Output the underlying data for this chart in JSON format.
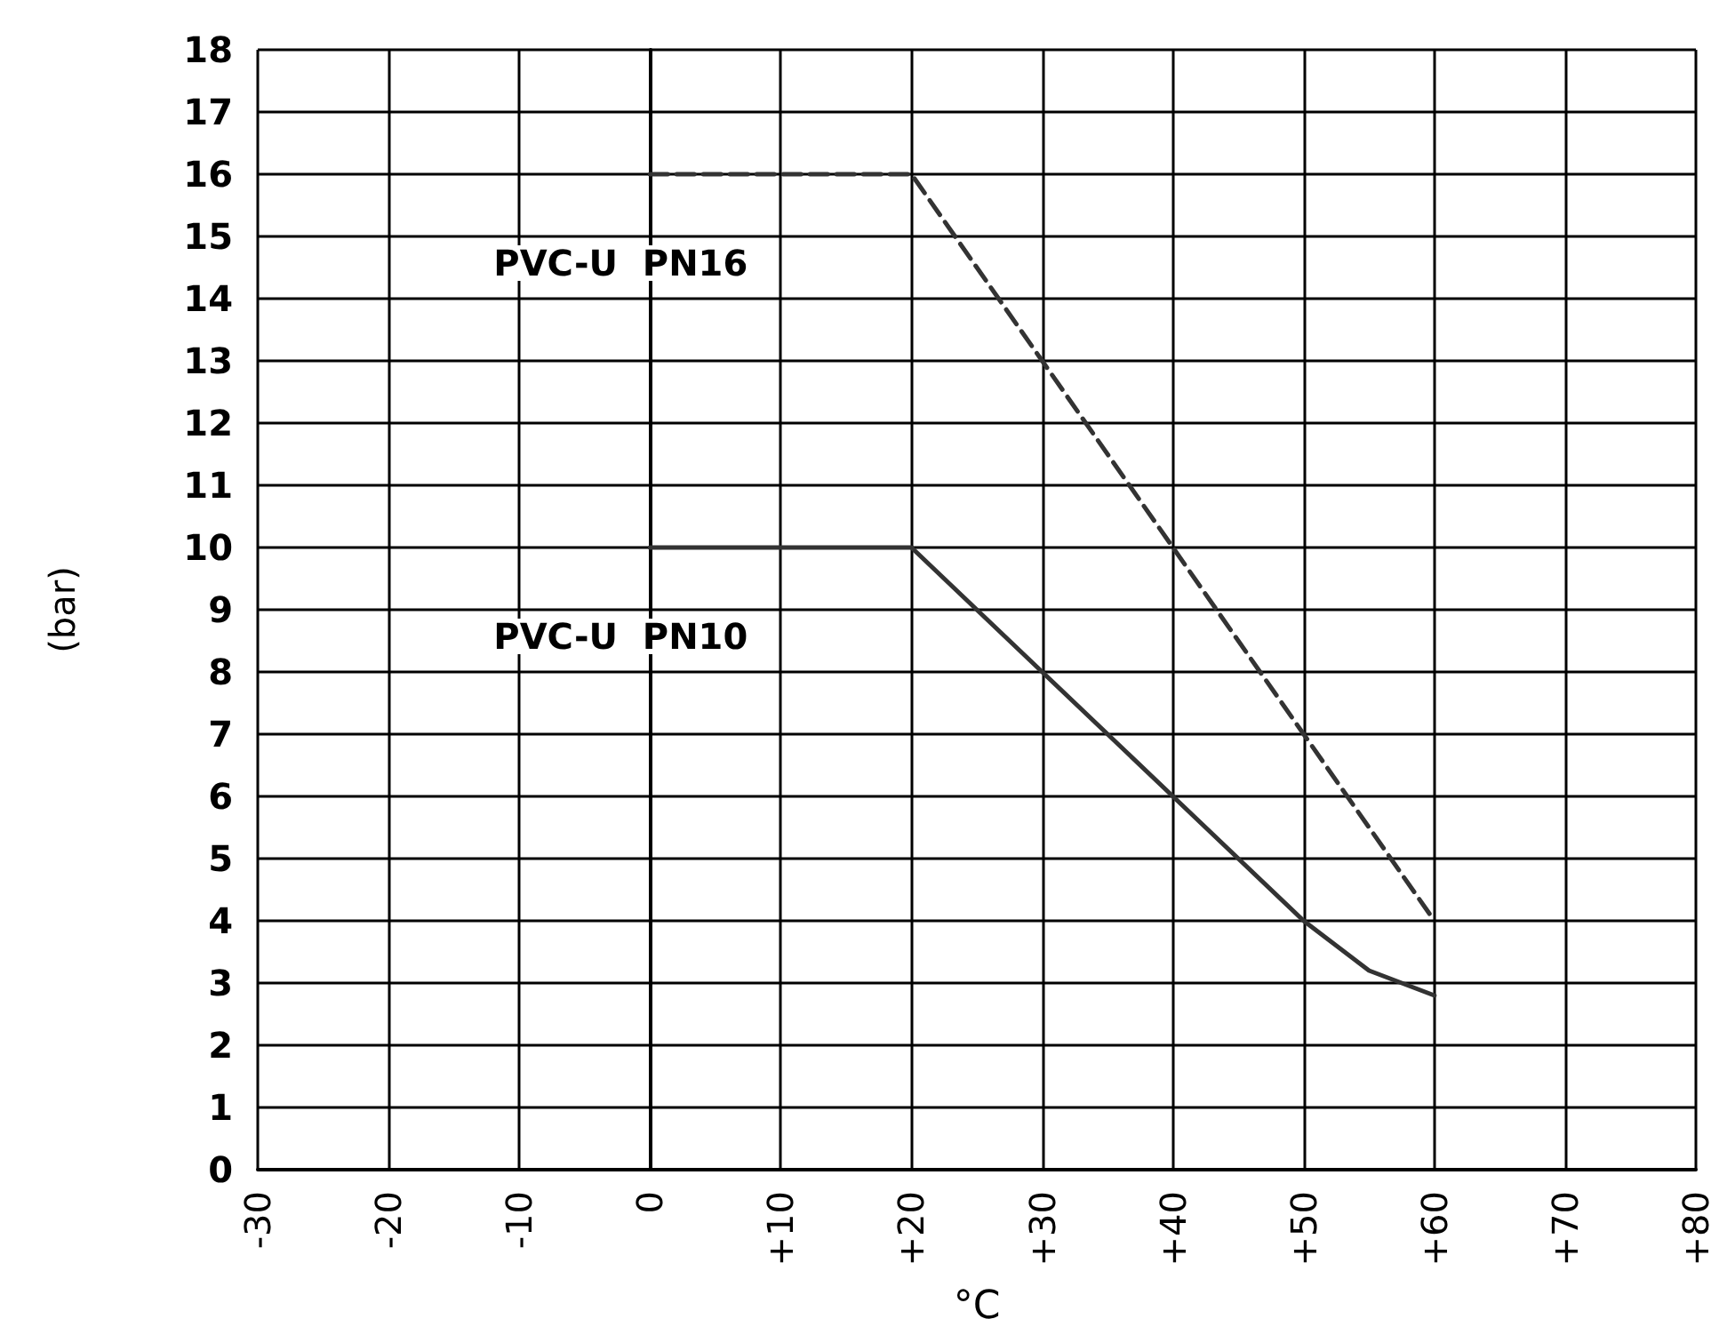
{
  "chart_data": {
    "type": "line",
    "xlabel": "°C",
    "ylabel": "(bar)",
    "xlim": [
      -30,
      80
    ],
    "xticks": [
      -30,
      -20,
      -10,
      0,
      {
        "value": 10,
        "label": "+10"
      },
      {
        "value": 20,
        "label": "+20"
      },
      {
        "value": 30,
        "label": "+30"
      },
      {
        "value": 40,
        "label": "+40"
      },
      {
        "value": 50,
        "label": "+50"
      },
      {
        "value": 60,
        "label": "+60"
      },
      {
        "value": 70,
        "label": "+70"
      },
      {
        "value": 80,
        "label": "+80"
      }
    ],
    "ylim": [
      0,
      18
    ],
    "yticks": [
      0,
      1,
      2,
      3,
      4,
      5,
      6,
      7,
      8,
      9,
      10,
      11,
      12,
      13,
      14,
      15,
      16,
      17,
      18
    ],
    "grid": true,
    "legend": false,
    "marker": "none",
    "series": [
      {
        "name": "PVC-U  PN16",
        "color": "#333333",
        "line_style": "dashed",
        "x": [
          0,
          20,
          30,
          40,
          50,
          60
        ],
        "values": [
          16,
          16,
          13,
          10,
          7,
          4
        ]
      },
      {
        "name": "PVC-U  PN10",
        "color": "#333333",
        "line_style": "solid",
        "x": [
          0,
          20,
          30,
          40,
          50,
          55,
          60
        ],
        "values": [
          10,
          10,
          8,
          6,
          4,
          3.2,
          2.8
        ]
      }
    ]
  }
}
